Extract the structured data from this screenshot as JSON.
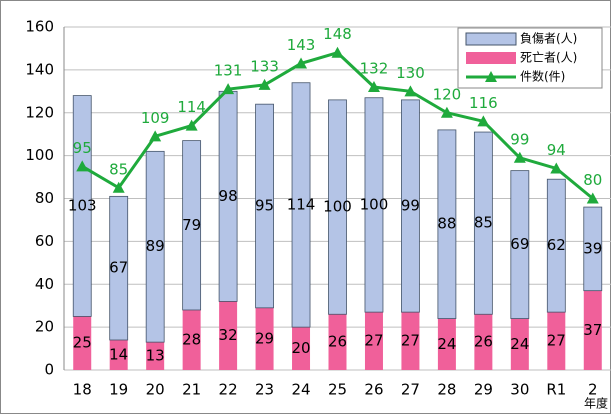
{
  "chart_data": {
    "type": "bar",
    "categories": [
      "18",
      "19",
      "20",
      "21",
      "22",
      "23",
      "24",
      "25",
      "26",
      "27",
      "28",
      "29",
      "30",
      "R1",
      "2"
    ],
    "x_label": "年度",
    "series": [
      {
        "name": "死亡者(人)",
        "color": "#f0609a",
        "stack": true,
        "values": [
          25,
          14,
          13,
          28,
          32,
          29,
          20,
          26,
          27,
          27,
          24,
          26,
          24,
          27,
          37
        ]
      },
      {
        "name": "負傷者(人)",
        "color": "#b4c4e6",
        "stack": true,
        "values": [
          103,
          67,
          89,
          79,
          98,
          95,
          114,
          100,
          100,
          99,
          88,
          85,
          69,
          62,
          39
        ]
      },
      {
        "name": "件数(件)",
        "color": "#1faa3c",
        "type": "line",
        "values": [
          95,
          85,
          109,
          114,
          131,
          133,
          143,
          148,
          132,
          130,
          120,
          116,
          99,
          94,
          80
        ]
      }
    ],
    "ylim": [
      0,
      160
    ],
    "yticks": [
      0,
      20,
      40,
      60,
      80,
      100,
      120,
      140,
      160
    ],
    "grid": true,
    "legend": "top-right"
  }
}
